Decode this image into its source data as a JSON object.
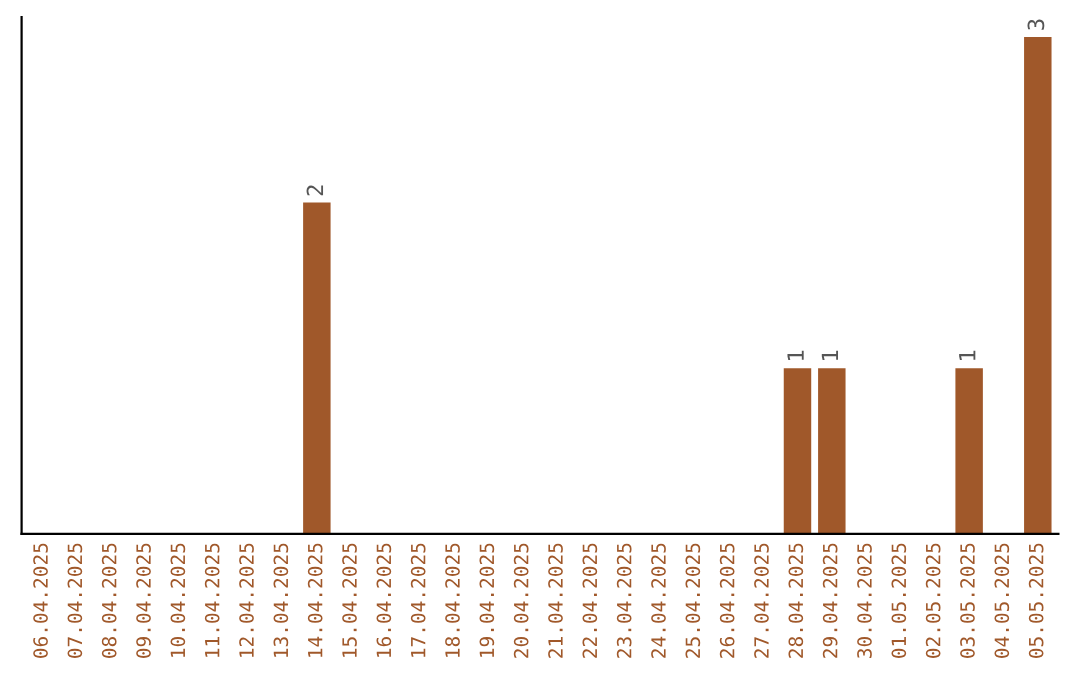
{
  "chart_data": {
    "type": "bar",
    "categories": [
      "06.04.2025",
      "07.04.2025",
      "08.04.2025",
      "09.04.2025",
      "10.04.2025",
      "11.04.2025",
      "12.04.2025",
      "13.04.2025",
      "14.04.2025",
      "15.04.2025",
      "16.04.2025",
      "17.04.2025",
      "18.04.2025",
      "19.04.2025",
      "20.04.2025",
      "21.04.2025",
      "22.04.2025",
      "23.04.2025",
      "24.04.2025",
      "25.04.2025",
      "26.04.2025",
      "27.04.2025",
      "28.04.2025",
      "29.04.2025",
      "30.04.2025",
      "01.05.2025",
      "02.05.2025",
      "03.05.2025",
      "04.05.2025",
      "05.05.2025"
    ],
    "values": [
      0,
      0,
      0,
      0,
      0,
      0,
      0,
      0,
      2,
      0,
      0,
      0,
      0,
      0,
      0,
      0,
      0,
      0,
      0,
      0,
      0,
      0,
      1,
      1,
      0,
      0,
      0,
      1,
      0,
      3
    ],
    "value_labels": [
      null,
      null,
      null,
      null,
      null,
      null,
      null,
      null,
      "2",
      null,
      null,
      null,
      null,
      null,
      null,
      null,
      null,
      null,
      null,
      null,
      null,
      null,
      "1",
      "1",
      null,
      null,
      null,
      "1",
      null,
      "3"
    ],
    "color": "#a0582a",
    "tick_labels": "x",
    "grid": false,
    "legend": false
  }
}
